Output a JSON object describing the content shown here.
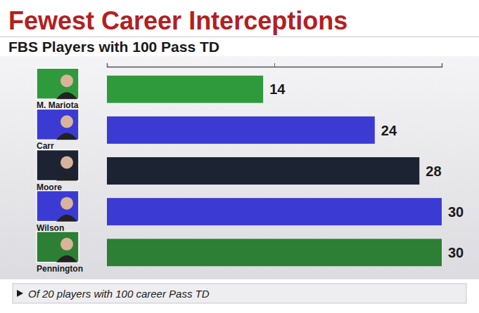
{
  "chart_data": {
    "type": "bar",
    "orientation": "horizontal",
    "title": "Fewest Career Interceptions",
    "subtitle": "FBS Players with 100 Pass TD",
    "categories": [
      "M. Mariota",
      "Carr",
      "Moore",
      "Wilson",
      "Pennington"
    ],
    "values": [
      14,
      24,
      28,
      30,
      30
    ],
    "colors": [
      "#2f9a3c",
      "#3b3bd4",
      "#1c2333",
      "#3b3bd4",
      "#2c7f35"
    ],
    "xlim": [
      0,
      30
    ],
    "xticks": [
      0,
      15,
      30
    ],
    "tick_labels": false,
    "grid": false,
    "data_labels": true,
    "annotations": [
      "Of 20 players with 100 career Pass TD"
    ]
  }
}
